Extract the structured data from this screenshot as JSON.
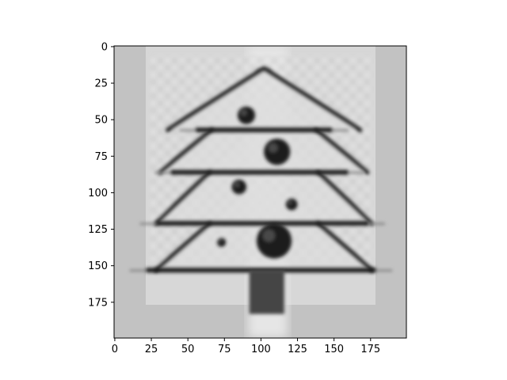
{
  "chart_data": {
    "type": "heatmap",
    "description_colormap": "gray",
    "x_ticks": [
      0,
      25,
      50,
      75,
      100,
      125,
      150,
      175
    ],
    "y_ticks": [
      0,
      25,
      50,
      75,
      100,
      125,
      150,
      175
    ],
    "xlim": [
      0,
      199
    ],
    "ylim": [
      199,
      0
    ],
    "grid": false,
    "image": {
      "background_value": 0.76,
      "apex": [
        102,
        15
      ],
      "tiers": [
        {
          "y_top": 15,
          "y_bottom": 57,
          "half_width_bottom": 70
        },
        {
          "y_top": 57,
          "y_bottom": 86,
          "half_width_bottom": 75
        },
        {
          "y_top": 86,
          "y_bottom": 121,
          "half_width_bottom": 78
        },
        {
          "y_top": 121,
          "y_bottom": 153,
          "half_width_bottom": 78
        }
      ],
      "horizontal_bars_y": [
        57,
        86,
        121,
        153
      ],
      "trunk": {
        "x": [
          92,
          116
        ],
        "y": [
          153,
          183
        ]
      },
      "ornaments": [
        {
          "cx": 90,
          "cy": 47,
          "r": 6
        },
        {
          "cx": 111,
          "cy": 72,
          "r": 9
        },
        {
          "cx": 85,
          "cy": 96,
          "r": 5
        },
        {
          "cx": 121,
          "cy": 108,
          "r": 4
        },
        {
          "cx": 109,
          "cy": 133,
          "r": 12
        },
        {
          "cx": 73,
          "cy": 134,
          "r": 3
        }
      ]
    }
  }
}
